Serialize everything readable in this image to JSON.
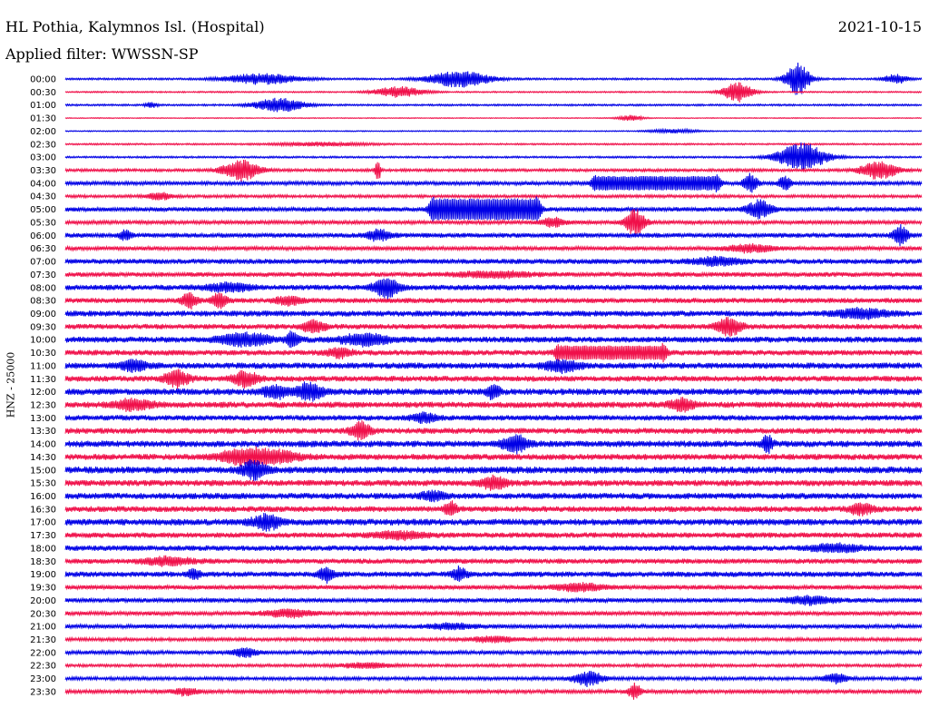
{
  "header": {
    "station": "HL Pothia, Kalymnos Isl. (Hospital)",
    "date": "2021-10-15",
    "filter_label": "Applied filter: WWSSN-SP"
  },
  "colors": {
    "blue": "#0000e6",
    "red": "#f0104a",
    "background": "#ffffff"
  },
  "chart_data": {
    "type": "line",
    "title": "HL Pothia, Kalymnos Isl. (Hospital)",
    "subtitle": "Applied filter: WWSSN-SP",
    "ylabel": "HNZ - 25000",
    "xlabel": "",
    "series_colors_alternate": [
      "blue",
      "red"
    ],
    "rows": [
      {
        "time": "00:00",
        "base": 1.0,
        "events": [
          [
            0.23,
            0.03,
            6
          ],
          [
            0.46,
            0.025,
            9
          ],
          [
            0.855,
            0.01,
            18
          ],
          [
            0.97,
            0.01,
            5
          ]
        ]
      },
      {
        "time": "00:30",
        "base": 0.8,
        "events": [
          [
            0.39,
            0.02,
            6
          ],
          [
            0.785,
            0.012,
            11
          ]
        ]
      },
      {
        "time": "01:00",
        "base": 1.0,
        "events": [
          [
            0.25,
            0.02,
            8
          ],
          [
            0.1,
            0.005,
            3
          ]
        ]
      },
      {
        "time": "01:30",
        "base": 0.5,
        "events": [
          [
            0.66,
            0.01,
            3
          ]
        ]
      },
      {
        "time": "02:00",
        "base": 0.6,
        "events": [
          [
            0.71,
            0.02,
            2
          ]
        ]
      },
      {
        "time": "02:30",
        "base": 0.9,
        "events": [
          [
            0.3,
            0.04,
            2
          ]
        ]
      },
      {
        "time": "03:00",
        "base": 1.0,
        "events": [
          [
            0.86,
            0.02,
            16
          ]
        ]
      },
      {
        "time": "03:30",
        "base": 1.5,
        "events": [
          [
            0.205,
            0.015,
            12
          ],
          [
            0.365,
            0.002,
            15
          ],
          [
            0.95,
            0.015,
            10
          ]
        ]
      },
      {
        "time": "04:00",
        "base": 2.0,
        "events": [
          [
            0.69,
            0.07,
            8,
            true
          ],
          [
            0.8,
            0.006,
            10
          ],
          [
            0.84,
            0.005,
            8
          ]
        ]
      },
      {
        "time": "04:30",
        "base": 1.6,
        "events": [
          [
            0.11,
            0.01,
            4
          ]
        ]
      },
      {
        "time": "05:00",
        "base": 2.4,
        "events": [
          [
            0.49,
            0.06,
            12,
            true
          ],
          [
            0.81,
            0.01,
            10
          ]
        ]
      },
      {
        "time": "05:30",
        "base": 2.0,
        "events": [
          [
            0.665,
            0.008,
            15
          ],
          [
            0.57,
            0.01,
            5
          ]
        ]
      },
      {
        "time": "06:00",
        "base": 2.6,
        "events": [
          [
            0.365,
            0.01,
            6
          ],
          [
            0.975,
            0.006,
            10
          ],
          [
            0.07,
            0.005,
            5
          ]
        ]
      },
      {
        "time": "06:30",
        "base": 2.2,
        "events": [
          [
            0.8,
            0.02,
            4
          ]
        ]
      },
      {
        "time": "07:00",
        "base": 2.8,
        "events": [
          [
            0.76,
            0.02,
            4
          ]
        ]
      },
      {
        "time": "07:30",
        "base": 2.6,
        "events": [
          [
            0.5,
            0.03,
            3
          ]
        ]
      },
      {
        "time": "08:00",
        "base": 3.0,
        "events": [
          [
            0.375,
            0.01,
            11
          ],
          [
            0.19,
            0.02,
            4
          ]
        ]
      },
      {
        "time": "08:30",
        "base": 2.8,
        "events": [
          [
            0.145,
            0.006,
            9
          ],
          [
            0.18,
            0.006,
            8
          ],
          [
            0.26,
            0.01,
            5
          ]
        ]
      },
      {
        "time": "09:00",
        "base": 3.2,
        "events": [
          [
            0.93,
            0.02,
            5
          ]
        ]
      },
      {
        "time": "09:30",
        "base": 2.9,
        "events": [
          [
            0.775,
            0.01,
            10
          ],
          [
            0.29,
            0.01,
            6
          ]
        ]
      },
      {
        "time": "10:00",
        "base": 3.3,
        "events": [
          [
            0.21,
            0.02,
            7
          ],
          [
            0.35,
            0.02,
            6
          ],
          [
            0.265,
            0.005,
            8
          ]
        ]
      },
      {
        "time": "10:30",
        "base": 3.0,
        "events": [
          [
            0.637,
            0.06,
            8,
            true
          ],
          [
            0.32,
            0.01,
            5
          ]
        ]
      },
      {
        "time": "11:00",
        "base": 3.4,
        "events": [
          [
            0.58,
            0.015,
            6
          ],
          [
            0.08,
            0.01,
            6
          ]
        ]
      },
      {
        "time": "11:30",
        "base": 3.2,
        "events": [
          [
            0.13,
            0.01,
            9
          ],
          [
            0.21,
            0.01,
            8
          ]
        ]
      },
      {
        "time": "12:00",
        "base": 3.6,
        "events": [
          [
            0.285,
            0.01,
            10
          ],
          [
            0.245,
            0.01,
            7
          ],
          [
            0.5,
            0.005,
            8
          ]
        ]
      },
      {
        "time": "12:30",
        "base": 3.4,
        "events": [
          [
            0.08,
            0.015,
            6
          ],
          [
            0.72,
            0.01,
            6
          ]
        ]
      },
      {
        "time": "13:00",
        "base": 3.0,
        "events": [
          [
            0.42,
            0.01,
            5
          ]
        ]
      },
      {
        "time": "13:30",
        "base": 3.2,
        "events": [
          [
            0.345,
            0.008,
            9
          ]
        ]
      },
      {
        "time": "14:00",
        "base": 3.6,
        "events": [
          [
            0.525,
            0.01,
            9
          ],
          [
            0.82,
            0.004,
            10
          ]
        ]
      },
      {
        "time": "14:30",
        "base": 3.3,
        "events": [
          [
            0.21,
            0.02,
            9
          ],
          [
            0.25,
            0.02,
            5
          ]
        ]
      },
      {
        "time": "15:00",
        "base": 3.8,
        "events": [
          [
            0.22,
            0.01,
            10
          ]
        ]
      },
      {
        "time": "15:30",
        "base": 3.4,
        "events": [
          [
            0.5,
            0.01,
            7
          ]
        ]
      },
      {
        "time": "16:00",
        "base": 3.4,
        "events": [
          [
            0.43,
            0.01,
            5
          ]
        ]
      },
      {
        "time": "16:30",
        "base": 3.2,
        "events": [
          [
            0.45,
            0.005,
            8
          ],
          [
            0.93,
            0.01,
            6
          ]
        ]
      },
      {
        "time": "17:00",
        "base": 3.6,
        "events": [
          [
            0.235,
            0.012,
            8
          ]
        ]
      },
      {
        "time": "17:30",
        "base": 3.0,
        "events": [
          [
            0.39,
            0.02,
            4
          ]
        ]
      },
      {
        "time": "18:00",
        "base": 3.0,
        "events": [
          [
            0.9,
            0.02,
            4
          ]
        ]
      },
      {
        "time": "18:30",
        "base": 2.8,
        "events": [
          [
            0.12,
            0.02,
            4
          ]
        ]
      },
      {
        "time": "19:00",
        "base": 3.0,
        "events": [
          [
            0.305,
            0.006,
            9
          ],
          [
            0.46,
            0.006,
            7
          ],
          [
            0.15,
            0.005,
            5
          ]
        ]
      },
      {
        "time": "19:30",
        "base": 2.4,
        "events": [
          [
            0.6,
            0.02,
            4
          ]
        ]
      },
      {
        "time": "20:00",
        "base": 2.4,
        "events": [
          [
            0.87,
            0.02,
            4
          ]
        ]
      },
      {
        "time": "20:30",
        "base": 2.2,
        "events": [
          [
            0.26,
            0.02,
            4
          ]
        ]
      },
      {
        "time": "21:00",
        "base": 2.2,
        "events": [
          [
            0.45,
            0.02,
            3
          ]
        ]
      },
      {
        "time": "21:30",
        "base": 1.8,
        "events": [
          [
            0.5,
            0.02,
            3
          ]
        ]
      },
      {
        "time": "22:00",
        "base": 2.0,
        "events": [
          [
            0.21,
            0.01,
            5
          ]
        ]
      },
      {
        "time": "22:30",
        "base": 1.6,
        "events": [
          [
            0.35,
            0.02,
            3
          ]
        ]
      },
      {
        "time": "23:00",
        "base": 1.8,
        "events": [
          [
            0.61,
            0.012,
            8
          ],
          [
            0.9,
            0.01,
            5
          ]
        ]
      },
      {
        "time": "23:30",
        "base": 2.0,
        "events": [
          [
            0.665,
            0.005,
            9
          ],
          [
            0.14,
            0.01,
            4
          ]
        ]
      }
    ]
  }
}
